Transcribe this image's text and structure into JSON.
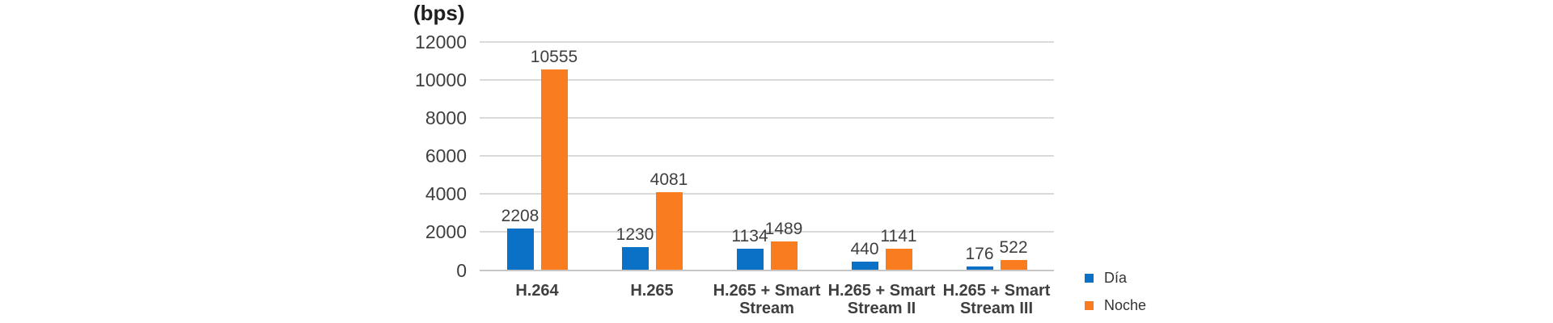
{
  "chart_data": {
    "type": "bar",
    "title": "(bps)",
    "ylabel": "(bps)",
    "xlabel": "",
    "ylim": [
      0,
      12000
    ],
    "yticks": [
      0,
      2000,
      4000,
      6000,
      8000,
      10000,
      12000
    ],
    "grid": true,
    "legend_position": "right-bottom",
    "categories": [
      {
        "label": "H.264",
        "lines": [
          "H.264"
        ]
      },
      {
        "label": "H.265",
        "lines": [
          "H.265"
        ]
      },
      {
        "label": "H.265 + Smart Stream",
        "lines": [
          "H.265 + Smart",
          "Stream"
        ]
      },
      {
        "label": "H.265 + Smart Stream II",
        "lines": [
          "H.265 + Smart",
          "Stream II"
        ]
      },
      {
        "label": "H.265 + Smart Stream III",
        "lines": [
          "H.265 + Smart",
          "Stream III"
        ]
      }
    ],
    "series": [
      {
        "name": "Día",
        "color": "#0a71c7",
        "values": [
          2208,
          1230,
          1134,
          440,
          176
        ]
      },
      {
        "name": "Noche",
        "color": "#f97d1e",
        "values": [
          10555,
          4081,
          1489,
          1141,
          522
        ]
      }
    ],
    "colors": {
      "gridline": "#d9d9d9",
      "axis_baseline": "#c6c6c6",
      "tick_text": "#3f3f3f",
      "title_text": "#1f1f1f",
      "legend_text": "#333333"
    }
  }
}
